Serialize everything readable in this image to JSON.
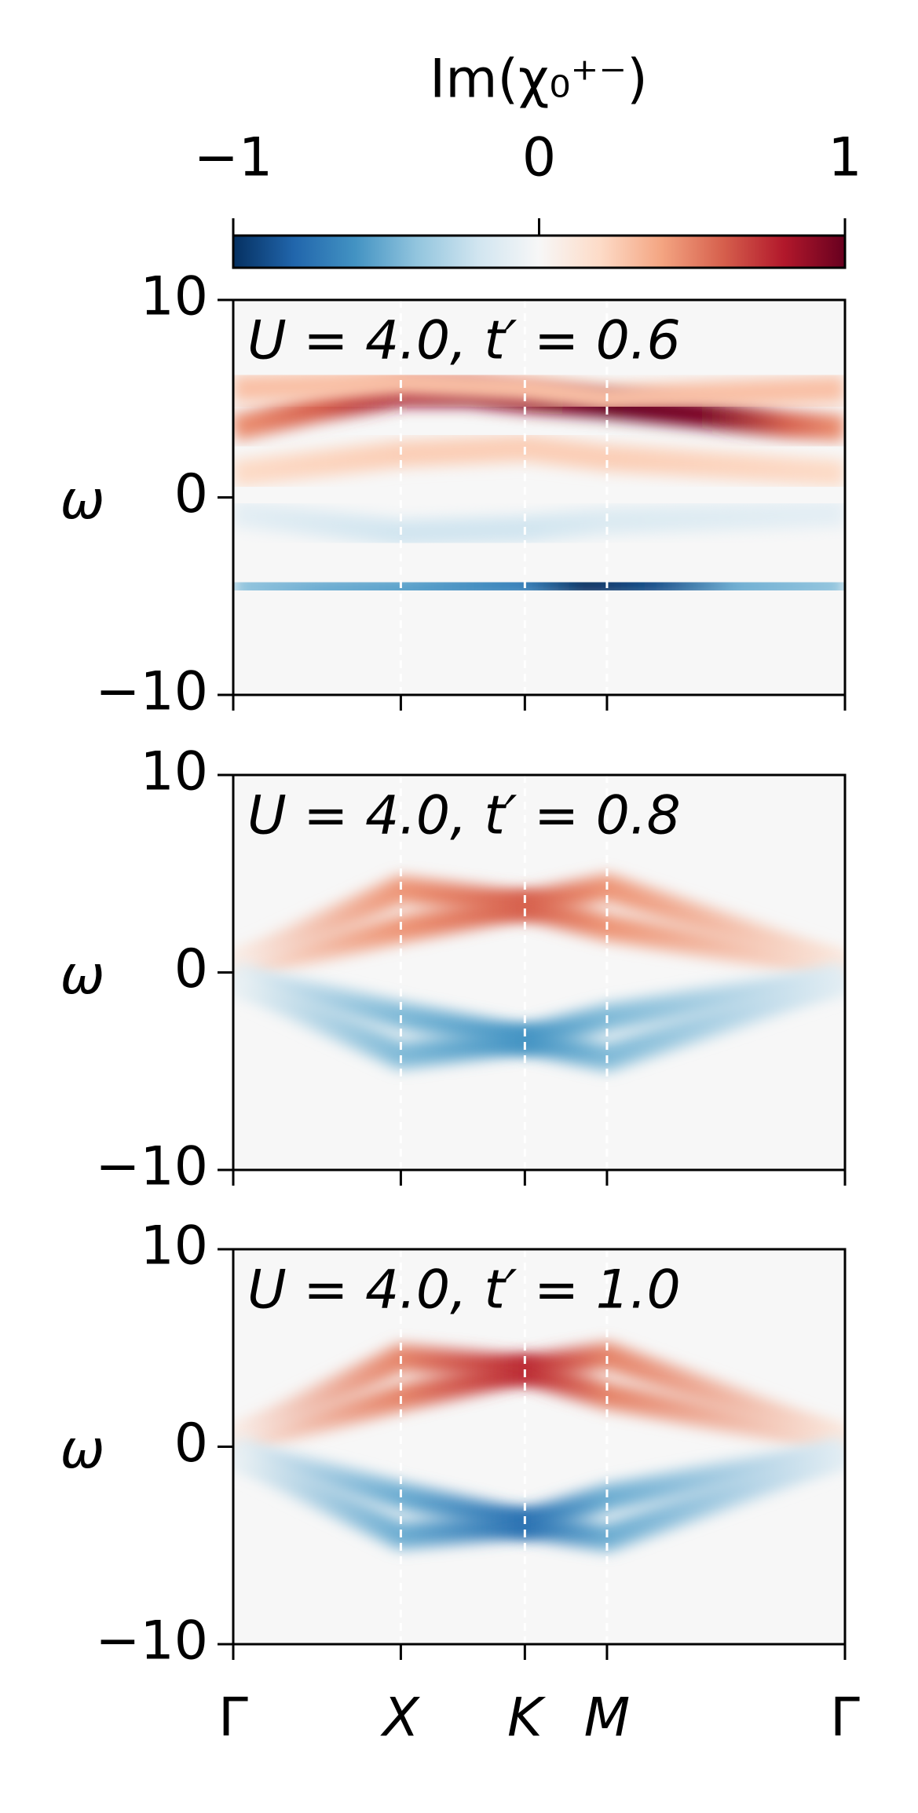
{
  "colorbar": {
    "title": "Im(χ₀⁺⁻)",
    "lim": [
      -1,
      1
    ],
    "ticks": [
      {
        "value": -1,
        "label": "−1"
      },
      0,
      1
    ],
    "colormap": [
      "#053061",
      "#2166ac",
      "#4393c3",
      "#92c5de",
      "#d1e5f0",
      "#f7f7f7",
      "#fddbc7",
      "#f4a582",
      "#d6604d",
      "#b2182b",
      "#67001f"
    ]
  },
  "chart_data": [
    {
      "type": "heatmap",
      "annotation": "U = 4.0, t′ = 0.6",
      "ylabel": "ω",
      "xlim": [
        0,
        3.65
      ],
      "ylim": [
        -10,
        10
      ],
      "yticks": [
        {
          "value": -10,
          "label": "−10"
        },
        0,
        10
      ],
      "bands": [
        {
          "x": [
            0,
            0.5,
            1,
            1.4,
            1.74,
            2.23,
            2.8,
            3.3,
            3.65
          ],
          "values": [
            3.5,
            4.5,
            5.3,
            5.3,
            5,
            4.7,
            4.2,
            3.7,
            3.5
          ],
          "levels": [
            0.45,
            0.6,
            0.85,
            0.9,
            0.9,
            1,
            0.95,
            0.6,
            0.45
          ]
        },
        {
          "x": [
            0,
            1,
            1.74,
            2.23,
            3.65
          ],
          "values": [
            5.5,
            5.8,
            5.5,
            5,
            5.5
          ],
          "levels": [
            0.3,
            0.3,
            0.3,
            0.3,
            0.3
          ]
        },
        {
          "x": [
            0,
            1,
            1.74,
            2.23,
            3.65
          ],
          "values": [
            1.2,
            2.2,
            2.5,
            2,
            1.2
          ],
          "levels": [
            0.2,
            0.25,
            0.25,
            0.25,
            0.2
          ]
        },
        {
          "x": [
            0,
            1,
            1.74,
            2.23,
            3.65
          ],
          "values": [
            -0.8,
            -1.8,
            -1.6,
            -1.2,
            -0.8
          ],
          "levels": [
            -0.1,
            -0.2,
            -0.2,
            -0.15,
            -0.1
          ]
        },
        {
          "x": [
            0,
            0.5,
            1,
            1.74,
            2.1,
            2.5,
            3,
            3.65
          ],
          "values": [
            -4.5,
            -4.6,
            -4.6,
            -4.4,
            -4.4,
            -4.4,
            -4.5,
            -4.5
          ],
          "levels": [
            -0.4,
            -0.5,
            -0.55,
            -0.7,
            -1,
            -0.9,
            -0.5,
            -0.4
          ]
        }
      ]
    },
    {
      "type": "heatmap",
      "annotation": "U = 4.0, t′ = 0.8",
      "ylabel": "ω",
      "xlim": [
        0,
        3.65
      ],
      "ylim": [
        -10,
        10
      ],
      "yticks": [
        {
          "value": -10,
          "label": "−10"
        },
        0,
        10
      ],
      "bands": [
        {
          "x": [
            0,
            1,
            1.74,
            2.23,
            3.65
          ],
          "values": [
            0.3,
            2.2,
            3.4,
            4.3,
            0.3
          ],
          "levels": [
            0.1,
            0.45,
            0.6,
            0.45,
            0.1
          ]
        },
        {
          "x": [
            0,
            1,
            1.74,
            2.23,
            3.65
          ],
          "values": [
            0.3,
            4.2,
            3.4,
            2.3,
            0.3
          ],
          "levels": [
            0.05,
            0.45,
            0.6,
            0.45,
            0.1
          ]
        },
        {
          "x": [
            0,
            1,
            1.74,
            2.23,
            3.65
          ],
          "values": [
            -0.3,
            -2.2,
            -3.4,
            -4.3,
            -0.3
          ],
          "levels": [
            -0.1,
            -0.45,
            -0.6,
            -0.45,
            -0.1
          ]
        },
        {
          "x": [
            0,
            1,
            1.74,
            2.23,
            3.65
          ],
          "values": [
            -0.3,
            -4.2,
            -3.4,
            -2.3,
            -0.3
          ],
          "levels": [
            -0.05,
            -0.45,
            -0.6,
            -0.45,
            -0.1
          ]
        }
      ]
    },
    {
      "type": "heatmap",
      "annotation": "U = 4.0, t′ = 1.0",
      "ylabel": "ω",
      "xlim": [
        0,
        3.65
      ],
      "ylim": [
        -10,
        10
      ],
      "yticks": [
        {
          "value": -10,
          "label": "−10"
        },
        0,
        10
      ],
      "xticks": [
        {
          "value": 0,
          "label": "Γ"
        },
        {
          "value": 1,
          "label": "X"
        },
        {
          "value": 1.74,
          "label": "K"
        },
        {
          "value": 2.23,
          "label": "M"
        },
        {
          "value": 3.65,
          "label": "Γ"
        }
      ],
      "bands": [
        {
          "x": [
            0,
            1,
            1.74,
            2.23,
            3.65
          ],
          "values": [
            0.3,
            2.5,
            3.9,
            4.6,
            0.3
          ],
          "levels": [
            0.1,
            0.5,
            0.75,
            0.5,
            0.1
          ]
        },
        {
          "x": [
            0,
            1,
            1.74,
            2.23,
            3.65
          ],
          "values": [
            0.3,
            4.5,
            3.9,
            2.6,
            0.3
          ],
          "levels": [
            0.05,
            0.5,
            0.75,
            0.5,
            0.1
          ]
        },
        {
          "x": [
            0,
            1,
            1.74,
            2.23,
            3.65
          ],
          "values": [
            -0.3,
            -2.5,
            -3.9,
            -4.6,
            -0.3
          ],
          "levels": [
            -0.1,
            -0.5,
            -0.75,
            -0.5,
            -0.1
          ]
        },
        {
          "x": [
            0,
            1,
            1.74,
            2.23,
            3.65
          ],
          "values": [
            -0.3,
            -4.5,
            -3.9,
            -2.6,
            -0.3
          ],
          "levels": [
            -0.05,
            -0.5,
            -0.75,
            -0.5,
            -0.1
          ]
        }
      ]
    }
  ]
}
